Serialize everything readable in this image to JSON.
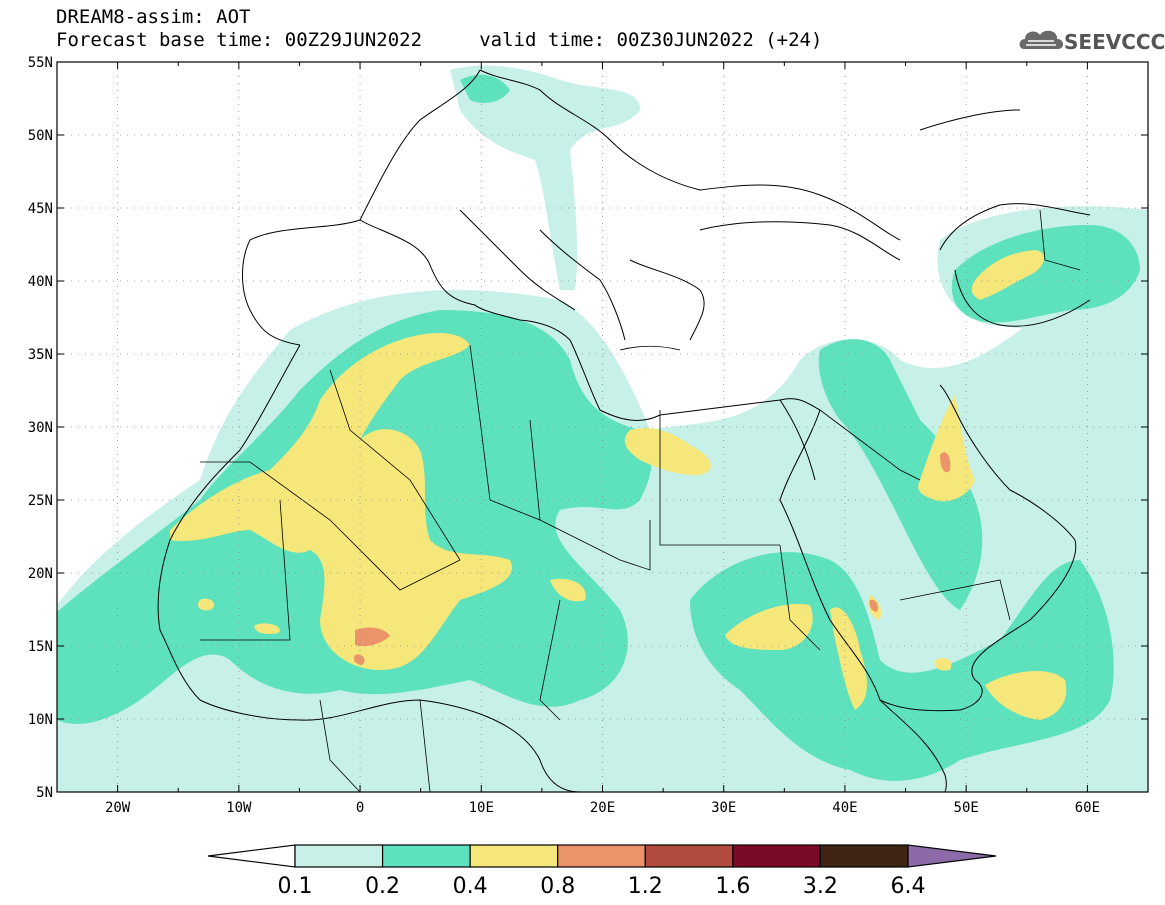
{
  "header": {
    "title": "DREAM8-assim: AOT",
    "subtitle": "Forecast base time: 00Z29JUN2022     valid time: 00Z30JUN2022 (+24)"
  },
  "logo": {
    "text": "SEEVCCC",
    "icon": "cloud-icon"
  },
  "map": {
    "lon_range": [
      -25,
      65
    ],
    "lat_range": [
      5,
      55
    ],
    "lat_labels": [
      "55N",
      "50N",
      "45N",
      "40N",
      "35N",
      "30N",
      "25N",
      "20N",
      "15N",
      "10N",
      "5N"
    ],
    "lon_labels": [
      "20W",
      "10W",
      "0",
      "10E",
      "20E",
      "30E",
      "40E",
      "50E",
      "60E"
    ]
  },
  "colorbar": {
    "labels": [
      "0.1",
      "0.2",
      "0.4",
      "0.8",
      "1.2",
      "1.6",
      "3.2",
      "6.4"
    ],
    "colors": [
      "#ffffff",
      "#c6f0e8",
      "#5ee1bd",
      "#f6e77a",
      "#eb946a",
      "#b04b3d",
      "#7b0a26",
      "#402515",
      "#8c6aa8"
    ]
  }
}
